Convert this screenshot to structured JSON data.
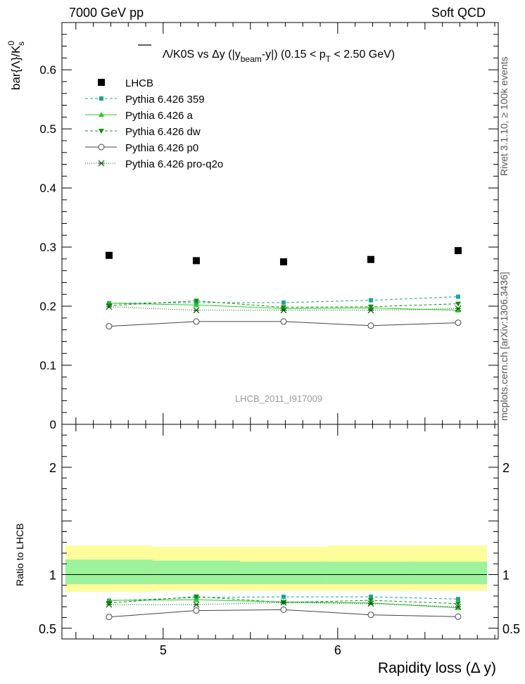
{
  "header": {
    "left": "7000 GeV pp",
    "right": "Soft QCD"
  },
  "side_labels": {
    "rivet": "Rivet 3.1.10, ≥ 100k events",
    "mcplots": "mcplots.cern.ch [arXiv:1306.3436]"
  },
  "watermark": "LHCB_2011_I917009",
  "colors": {
    "data": "#000000",
    "p359": "#19a590",
    "a": "#22cc22",
    "dw": "#109010",
    "p0": "#444444",
    "q2o": "#0a5a0a",
    "band_outer": "#fdfd9c",
    "band_inner": "#9cf39c"
  },
  "chart_data": [
    {
      "type": "scatter",
      "title": "Λ̅/K0S vs Δy (|y_beam-y|) (0.15 < p_T < 2.50 GeV)",
      "title_parts": {
        "lam": "Λ",
        "a": "/K0S vs Δy (|y",
        "b": "beam",
        "c": "-y|) (0.15 < p",
        "d": "T",
        "e": " < 2.50 GeV)"
      },
      "ylabel": "bar{Λ}/K⁰s",
      "ylabel_parts": {
        "a": "bar{Λ}/K",
        "sup": "0",
        "sub": "s"
      },
      "xlim": [
        4.42,
        6.92
      ],
      "ylim": [
        0,
        0.68
      ],
      "yticks": [
        "0",
        "0.1",
        "0.2",
        "0.3",
        "0.4",
        "0.5",
        "0.6"
      ],
      "x": [
        4.69,
        5.19,
        5.69,
        6.19,
        6.69
      ],
      "series": [
        {
          "name": "LHCB",
          "key": "data",
          "marker": "square",
          "values": [
            0.286,
            0.277,
            0.275,
            0.279,
            0.294
          ]
        },
        {
          "name": "Pythia 6.426 359",
          "key": "p359",
          "marker": "smallsquare",
          "dash": "4,3",
          "values": [
            0.205,
            0.206,
            0.206,
            0.21,
            0.216
          ]
        },
        {
          "name": "Pythia 6.426 a",
          "key": "a",
          "marker": "triup",
          "dash": "",
          "values": [
            0.205,
            0.202,
            0.196,
            0.197,
            0.193
          ]
        },
        {
          "name": "Pythia 6.426 dw",
          "key": "dw",
          "marker": "tridown",
          "dash": "4,3",
          "values": [
            0.201,
            0.209,
            0.198,
            0.199,
            0.204
          ]
        },
        {
          "name": "Pythia 6.426 p0",
          "key": "p0",
          "marker": "circle",
          "dash": "",
          "values": [
            0.166,
            0.174,
            0.174,
            0.167,
            0.172
          ]
        },
        {
          "name": "Pythia 6.426 pro-q2o",
          "key": "q2o",
          "marker": "star",
          "dash": "1,2",
          "values": [
            0.199,
            0.193,
            0.193,
            0.193,
            0.196
          ]
        }
      ]
    },
    {
      "type": "line",
      "ylabel": "Ratio to LHCB",
      "xlabel": "Rapidity loss (Δ y)",
      "xticks": [
        "5",
        "6"
      ],
      "xlim": [
        4.42,
        6.92
      ],
      "ylim": [
        0.4,
        2.4
      ],
      "yticks": [
        "0.5",
        "1",
        "2"
      ],
      "bands": {
        "edges": [
          4.44,
          4.94,
          5.44,
          5.94,
          6.44,
          6.94
        ],
        "outer": [
          [
            0.84,
            1.27
          ],
          [
            0.85,
            1.26
          ],
          [
            0.85,
            1.26
          ],
          [
            0.85,
            1.27
          ],
          [
            0.85,
            1.27
          ]
        ],
        "inner": [
          [
            0.91,
            1.14
          ],
          [
            0.91,
            1.13
          ],
          [
            0.91,
            1.12
          ],
          [
            0.91,
            1.12
          ],
          [
            0.91,
            1.12
          ]
        ]
      },
      "x": [
        4.69,
        5.19,
        5.69,
        6.19,
        6.69
      ],
      "series": [
        {
          "name": "Pythia 6.426 359",
          "key": "p359",
          "marker": "smallsquare",
          "dash": "4,3",
          "values": [
            0.756,
            0.786,
            0.793,
            0.793,
            0.772
          ]
        },
        {
          "name": "Pythia 6.426 a",
          "key": "a",
          "marker": "triup",
          "dash": "",
          "values": [
            0.76,
            0.765,
            0.745,
            0.735,
            0.69
          ]
        },
        {
          "name": "Pythia 6.426 dw",
          "key": "dw",
          "marker": "tridown",
          "dash": "4,3",
          "values": [
            0.735,
            0.795,
            0.74,
            0.76,
            0.73
          ]
        },
        {
          "name": "Pythia 6.426 p0",
          "key": "p0",
          "marker": "circle",
          "dash": "",
          "values": [
            0.605,
            0.665,
            0.673,
            0.625,
            0.608
          ]
        },
        {
          "name": "Pythia 6.426 pro-q2o",
          "key": "q2o",
          "marker": "star",
          "dash": "1,2",
          "values": [
            0.72,
            0.72,
            0.74,
            0.73,
            0.7
          ]
        }
      ]
    }
  ]
}
